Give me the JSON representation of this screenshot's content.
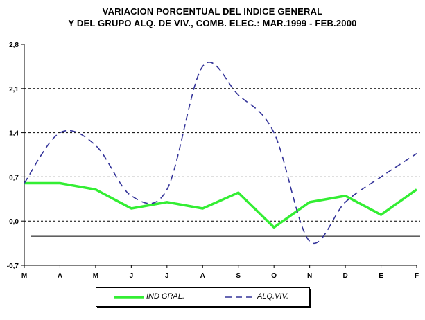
{
  "chart_data": {
    "type": "line",
    "title_lines": [
      "VARIACION PORCENTUAL DEL INDICE GENERAL",
      "Y DEL GRUPO ALQ. DE VIV., COMB.  ELEC.: MAR.1999 - FEB.2000"
    ],
    "categories": [
      "M",
      "A",
      "M",
      "J",
      "J",
      "A",
      "S",
      "O",
      "N",
      "D",
      "E",
      "F"
    ],
    "y_ticks": [
      "2,8",
      "2,1",
      "1,4",
      "0,7",
      "0,0",
      "-0,7"
    ],
    "ylim": [
      -0.7,
      2.8
    ],
    "grid": "horizontal dashed",
    "series": [
      {
        "name": "IND GRAL.",
        "color": "#33ee33",
        "style": "solid-thick",
        "values": [
          0.6,
          0.6,
          0.5,
          0.2,
          0.3,
          0.2,
          0.45,
          -0.1,
          0.3,
          0.4,
          0.1,
          0.5
        ]
      },
      {
        "name": "ALQ.VIV.",
        "color": "#333399",
        "style": "dashed-smooth",
        "values": [
          0.6,
          1.4,
          1.2,
          0.4,
          0.5,
          2.45,
          2.0,
          1.4,
          -0.32,
          0.3,
          0.7,
          1.07
        ]
      }
    ],
    "reference_line": -0.24,
    "legend_position": "bottom"
  }
}
